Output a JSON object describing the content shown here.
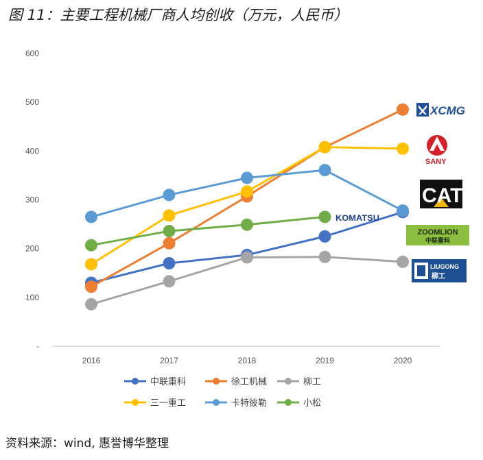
{
  "title": "图 11：主要工程机械厂商人均创收（万元，人民币）",
  "source": "资料来源：wind, 惠誉博华整理",
  "logos": {
    "xcmg": "XCMG",
    "sany": "SANY",
    "cat": "CAT",
    "komatsu": "KOMATSU",
    "zoomlion": "ZOOMLION",
    "zoomlion_cn": "中联重科",
    "liugong": "LIUGONG",
    "liugong_cn": "柳工"
  },
  "chart_data": {
    "type": "line",
    "x": [
      "2016",
      "2017",
      "2018",
      "2019",
      "2020"
    ],
    "yticks": [
      "600",
      "500",
      "400",
      "300",
      "200",
      "100",
      "-"
    ],
    "ylim": [
      0,
      600
    ],
    "grid": false,
    "legend_position": "bottom",
    "series": [
      {
        "name": "中联重科",
        "color": "#4472C4",
        "values": [
          130,
          170,
          187,
          225,
          275
        ]
      },
      {
        "name": "徐工机械",
        "color": "#ED7D31",
        "values": [
          122,
          211,
          307,
          408,
          485
        ]
      },
      {
        "name": "柳工",
        "color": "#A5A5A5",
        "values": [
          86,
          133,
          182,
          183,
          173
        ]
      },
      {
        "name": "三一重工",
        "color": "#FFC000",
        "values": [
          168,
          268,
          317,
          408,
          405
        ]
      },
      {
        "name": "卡特彼勒",
        "color": "#5B9BD5",
        "values": [
          265,
          310,
          345,
          361,
          278
        ]
      },
      {
        "name": "小松",
        "color": "#70AD47",
        "values": [
          207,
          236,
          249,
          265,
          null
        ]
      }
    ]
  }
}
